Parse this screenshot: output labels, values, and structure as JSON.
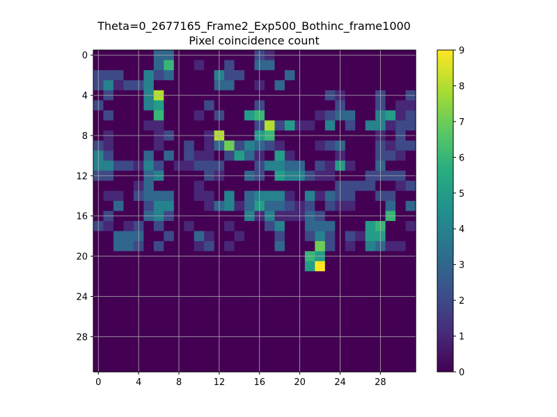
{
  "chart_data": {
    "type": "heatmap",
    "title": "Theta=0_2677165_Frame2_Exp500_Bothinc_frame1000",
    "subtitle": "Pixel coincidence count",
    "xlabel": "",
    "ylabel": "",
    "colormap": "viridis",
    "vmin": 0,
    "vmax": 9,
    "grid": true,
    "x_ticks": [
      0,
      4,
      8,
      12,
      16,
      20,
      24,
      28
    ],
    "y_ticks": [
      0,
      4,
      8,
      12,
      16,
      20,
      24,
      28
    ],
    "colorbar_ticks": [
      0,
      1,
      2,
      3,
      4,
      5,
      6,
      7,
      8,
      9
    ],
    "rows": [
      [
        0,
        0,
        0,
        0,
        0,
        0,
        3,
        3,
        0,
        0,
        0,
        0,
        0,
        0,
        0,
        0,
        2,
        1,
        0,
        0,
        0,
        0,
        0,
        0,
        0,
        0,
        0,
        0,
        0,
        0,
        0,
        0
      ],
      [
        0,
        0,
        0,
        0,
        0,
        0,
        3,
        6,
        0,
        0,
        1,
        0,
        0,
        2,
        0,
        0,
        3,
        3,
        0,
        0,
        0,
        0,
        0,
        0,
        0,
        0,
        0,
        0,
        0,
        0,
        0,
        0
      ],
      [
        2,
        2,
        2,
        0,
        0,
        4,
        2,
        3,
        0,
        0,
        0,
        0,
        4,
        2,
        2,
        0,
        0,
        0,
        0,
        3,
        0,
        0,
        0,
        0,
        0,
        0,
        0,
        0,
        0,
        0,
        0,
        0
      ],
      [
        2,
        4,
        1,
        2,
        2,
        4,
        0,
        0,
        0,
        0,
        0,
        0,
        3,
        3,
        0,
        0,
        1,
        0,
        3,
        0,
        0,
        0,
        0,
        0,
        0,
        0,
        0,
        0,
        0,
        0,
        0,
        0
      ],
      [
        0,
        2,
        0,
        0,
        0,
        4,
        8,
        0,
        0,
        0,
        0,
        0,
        0,
        0,
        0,
        0,
        0,
        0,
        0,
        0,
        0,
        0,
        0,
        2,
        1,
        0,
        0,
        0,
        2,
        0,
        0,
        2
      ],
      [
        2,
        0,
        0,
        0,
        0,
        4,
        5,
        0,
        0,
        0,
        0,
        2,
        0,
        0,
        0,
        0,
        2,
        0,
        0,
        0,
        0,
        0,
        0,
        0,
        2,
        0,
        0,
        0,
        2,
        0,
        1,
        1
      ],
      [
        0,
        2,
        0,
        0,
        0,
        0,
        6,
        0,
        0,
        0,
        1,
        0,
        2,
        0,
        0,
        5,
        6,
        0,
        0,
        0,
        0,
        0,
        1,
        2,
        3,
        3,
        0,
        0,
        4,
        5,
        1,
        2
      ],
      [
        0,
        0,
        0,
        0,
        0,
        1,
        1,
        0,
        0,
        0,
        0,
        0,
        0,
        0,
        0,
        0,
        2,
        8,
        2,
        5,
        1,
        1,
        0,
        4,
        0,
        2,
        0,
        4,
        4,
        1,
        2,
        2
      ],
      [
        0,
        1,
        0,
        0,
        0,
        0,
        1,
        2,
        0,
        0,
        0,
        1,
        8,
        0,
        0,
        0,
        5,
        6,
        0,
        0,
        0,
        0,
        0,
        0,
        0,
        0,
        0,
        0,
        1,
        0,
        2,
        0
      ],
      [
        2,
        1,
        0,
        0,
        0,
        0,
        1,
        0,
        0,
        2,
        0,
        1,
        3,
        7,
        2,
        4,
        3,
        2,
        1,
        0,
        0,
        0,
        1,
        2,
        3,
        0,
        0,
        0,
        2,
        1,
        2,
        2
      ],
      [
        4,
        2,
        0,
        0,
        0,
        3,
        0,
        3,
        0,
        2,
        1,
        1,
        0,
        2,
        5,
        3,
        1,
        0,
        5,
        1,
        0,
        0,
        0,
        0,
        1,
        0,
        0,
        0,
        2,
        2,
        1,
        0
      ],
      [
        4,
        4,
        2,
        2,
        1,
        4,
        2,
        0,
        1,
        1,
        2,
        2,
        2,
        0,
        0,
        0,
        2,
        4,
        4,
        3,
        3,
        0,
        2,
        1,
        5,
        1,
        0,
        0,
        3,
        0,
        0,
        0
      ],
      [
        2,
        2,
        0,
        0,
        0,
        3,
        4,
        0,
        0,
        0,
        0,
        2,
        1,
        0,
        0,
        3,
        2,
        0,
        5,
        4,
        4,
        2,
        1,
        1,
        0,
        0,
        0,
        2,
        2,
        2,
        2,
        0
      ],
      [
        0,
        0,
        0,
        0,
        1,
        3,
        0,
        0,
        0,
        0,
        1,
        0,
        0,
        0,
        0,
        0,
        0,
        0,
        0,
        0,
        0,
        0,
        0,
        0,
        2,
        2,
        2,
        2,
        0,
        0,
        1,
        2
      ],
      [
        0,
        1,
        1,
        0,
        2,
        3,
        3,
        3,
        0,
        0,
        1,
        1,
        0,
        4,
        0,
        3,
        4,
        4,
        4,
        1,
        0,
        4,
        1,
        3,
        2,
        2,
        0,
        0,
        2,
        2,
        0,
        0
      ],
      [
        0,
        0,
        3,
        0,
        0,
        2,
        4,
        4,
        0,
        0,
        0,
        1,
        3,
        4,
        1,
        3,
        5,
        3,
        3,
        2,
        1,
        2,
        0,
        2,
        1,
        1,
        0,
        0,
        0,
        3,
        0,
        3
      ],
      [
        0,
        2,
        0,
        0,
        0,
        3,
        4,
        2,
        0,
        0,
        0,
        0,
        0,
        0,
        0,
        4,
        1,
        4,
        1,
        1,
        1,
        3,
        2,
        0,
        0,
        0,
        0,
        0,
        0,
        6,
        0,
        0
      ],
      [
        2,
        1,
        0,
        1,
        2,
        0,
        2,
        0,
        0,
        1,
        0,
        0,
        0,
        1,
        0,
        0,
        0,
        2,
        4,
        0,
        0,
        3,
        3,
        3,
        0,
        0,
        0,
        5,
        6,
        0,
        0,
        1
      ],
      [
        0,
        0,
        3,
        3,
        3,
        0,
        0,
        2,
        0,
        0,
        3,
        1,
        0,
        0,
        1,
        0,
        0,
        0,
        2,
        0,
        0,
        2,
        4,
        2,
        0,
        2,
        1,
        5,
        5,
        0,
        0,
        0
      ],
      [
        0,
        0,
        3,
        3,
        2,
        0,
        2,
        0,
        0,
        0,
        1,
        2,
        0,
        1,
        0,
        0,
        0,
        0,
        3,
        0,
        0,
        0,
        7,
        2,
        0,
        1,
        0,
        4,
        3,
        1,
        1,
        0
      ],
      [
        0,
        0,
        0,
        0,
        0,
        0,
        0,
        0,
        0,
        0,
        0,
        0,
        0,
        0,
        0,
        0,
        0,
        0,
        0,
        0,
        0,
        6,
        5,
        0,
        0,
        0,
        0,
        0,
        0,
        0,
        0,
        0
      ],
      [
        0,
        0,
        0,
        0,
        0,
        0,
        0,
        0,
        0,
        0,
        0,
        0,
        0,
        0,
        0,
        0,
        0,
        0,
        0,
        0,
        0,
        5,
        9,
        0,
        0,
        0,
        0,
        0,
        0,
        0,
        0,
        0
      ],
      [
        0,
        0,
        0,
        0,
        0,
        0,
        0,
        0,
        0,
        0,
        0,
        0,
        0,
        0,
        0,
        0,
        0,
        0,
        0,
        0,
        0,
        0,
        0,
        0,
        0,
        0,
        0,
        0,
        0,
        0,
        0,
        0
      ],
      [
        0,
        0,
        0,
        0,
        0,
        0,
        0,
        0,
        0,
        0,
        0,
        0,
        0,
        0,
        0,
        0,
        0,
        0,
        0,
        0,
        0,
        0,
        0,
        0,
        0,
        0,
        0,
        0,
        0,
        0,
        0,
        0
      ],
      [
        0,
        0,
        0,
        0,
        0,
        0,
        0,
        0,
        0,
        0,
        0,
        0,
        0,
        0,
        0,
        0,
        0,
        0,
        0,
        0,
        0,
        0,
        0,
        0,
        0,
        0,
        0,
        0,
        0,
        0,
        0,
        0
      ],
      [
        0,
        0,
        0,
        0,
        0,
        0,
        0,
        0,
        0,
        0,
        0,
        0,
        0,
        0,
        0,
        0,
        0,
        0,
        0,
        0,
        0,
        0,
        0,
        0,
        0,
        0,
        0,
        0,
        0,
        0,
        0,
        0
      ],
      [
        0,
        0,
        0,
        0,
        0,
        0,
        0,
        0,
        0,
        0,
        0,
        0,
        0,
        0,
        0,
        0,
        0,
        0,
        0,
        0,
        0,
        0,
        0,
        0,
        0,
        0,
        0,
        0,
        0,
        0,
        0,
        0
      ],
      [
        0,
        0,
        0,
        0,
        0,
        0,
        0,
        0,
        0,
        0,
        0,
        0,
        0,
        0,
        0,
        0,
        0,
        0,
        0,
        0,
        0,
        0,
        0,
        0,
        0,
        0,
        0,
        0,
        0,
        0,
        0,
        0
      ],
      [
        0,
        0,
        0,
        0,
        0,
        0,
        0,
        0,
        0,
        0,
        0,
        0,
        0,
        0,
        0,
        0,
        0,
        0,
        0,
        0,
        0,
        0,
        0,
        0,
        0,
        0,
        0,
        0,
        0,
        0,
        0,
        0
      ],
      [
        0,
        0,
        0,
        0,
        0,
        0,
        0,
        0,
        0,
        0,
        0,
        0,
        0,
        0,
        0,
        0,
        0,
        0,
        0,
        0,
        0,
        0,
        0,
        0,
        0,
        0,
        0,
        0,
        0,
        0,
        0,
        0
      ],
      [
        0,
        0,
        0,
        0,
        0,
        0,
        0,
        0,
        0,
        0,
        0,
        0,
        0,
        0,
        0,
        0,
        0,
        0,
        0,
        0,
        0,
        0,
        0,
        0,
        0,
        0,
        0,
        0,
        0,
        0,
        0,
        0
      ],
      [
        0,
        0,
        0,
        0,
        0,
        0,
        0,
        0,
        0,
        0,
        0,
        0,
        0,
        0,
        0,
        0,
        0,
        0,
        0,
        0,
        0,
        0,
        0,
        0,
        0,
        0,
        0,
        0,
        0,
        0,
        0,
        0
      ]
    ]
  }
}
